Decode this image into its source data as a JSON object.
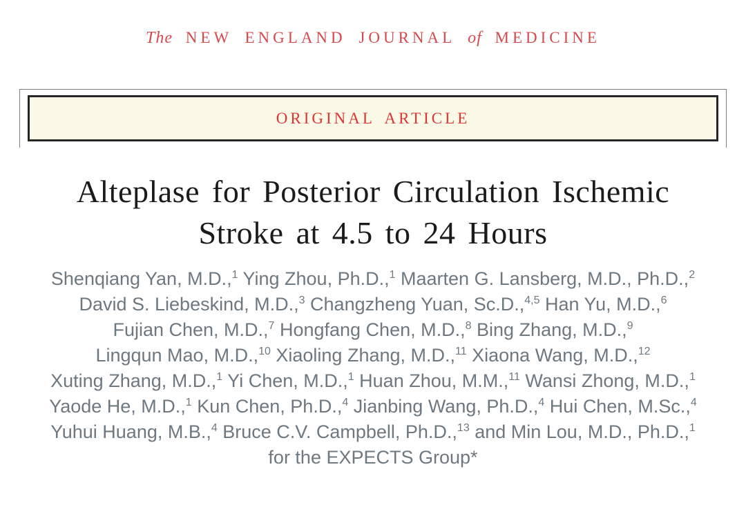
{
  "masthead": {
    "the_word": "The",
    "name_part1": "NEW ENGLAND JOURNAL",
    "of_word": "of",
    "name_part2": "MEDICINE"
  },
  "banner": {
    "label": "ORIGINAL ARTICLE"
  },
  "title": {
    "line1": "Alteplase for Posterior Circulation Ischemic",
    "line2": "Stroke at 4.5 to 24 Hours"
  },
  "authors": {
    "lines": [
      [
        {
          "text": "Shenqiang Yan, M.D.,",
          "sup": "1"
        },
        {
          "text": " Ying Zhou, Ph.D.,",
          "sup": "1"
        },
        {
          "text": " Maarten G. Lansberg, M.D., Ph.D.,",
          "sup": "2"
        }
      ],
      [
        {
          "text": "David S. Liebeskind, M.D.,",
          "sup": "3"
        },
        {
          "text": " Changzheng Yuan, Sc.D.,",
          "sup": "4,5"
        },
        {
          "text": " Han Yu, M.D.,",
          "sup": "6"
        }
      ],
      [
        {
          "text": "Fujian Chen, M.D.,",
          "sup": "7"
        },
        {
          "text": " Hongfang Chen, M.D.,",
          "sup": "8"
        },
        {
          "text": " Bing Zhang, M.D.,",
          "sup": "9"
        }
      ],
      [
        {
          "text": "Lingqun Mao, M.D.,",
          "sup": "10"
        },
        {
          "text": " Xiaoling Zhang, M.D.,",
          "sup": "11"
        },
        {
          "text": " Xiaona Wang, M.D.,",
          "sup": "12"
        }
      ],
      [
        {
          "text": "Xuting Zhang, M.D.,",
          "sup": "1"
        },
        {
          "text": " Yi Chen, M.D.,",
          "sup": "1"
        },
        {
          "text": " Huan Zhou, M.M.,",
          "sup": "11"
        },
        {
          "text": " Wansi Zhong, M.D.,",
          "sup": "1"
        }
      ],
      [
        {
          "text": "Yaode He, M.D.,",
          "sup": "1"
        },
        {
          "text": " Kun Chen, Ph.D.,",
          "sup": "4"
        },
        {
          "text": " Jianbing Wang, Ph.D.,",
          "sup": "4"
        },
        {
          "text": " Hui Chen, M.Sc.,",
          "sup": "4"
        }
      ],
      [
        {
          "text": "Yuhui Huang, M.B.,",
          "sup": "4"
        },
        {
          "text": " Bruce C.V. Campbell, Ph.D.,",
          "sup": "13"
        },
        {
          "text": " and Min Lou, M.D., Ph.D.,",
          "sup": "1"
        }
      ]
    ],
    "group_line": "for the EXPECTS Group*"
  },
  "colors": {
    "masthead_red": "#d5484c",
    "banner_red": "#dd3434",
    "banner_background": "#faf8e7",
    "banner_border_dark": "#262626",
    "banner_frame_gray": "#7b7b7b",
    "title_black": "#1b1b1b",
    "author_gray": "#6e7880",
    "page_background": "#ffffff"
  }
}
